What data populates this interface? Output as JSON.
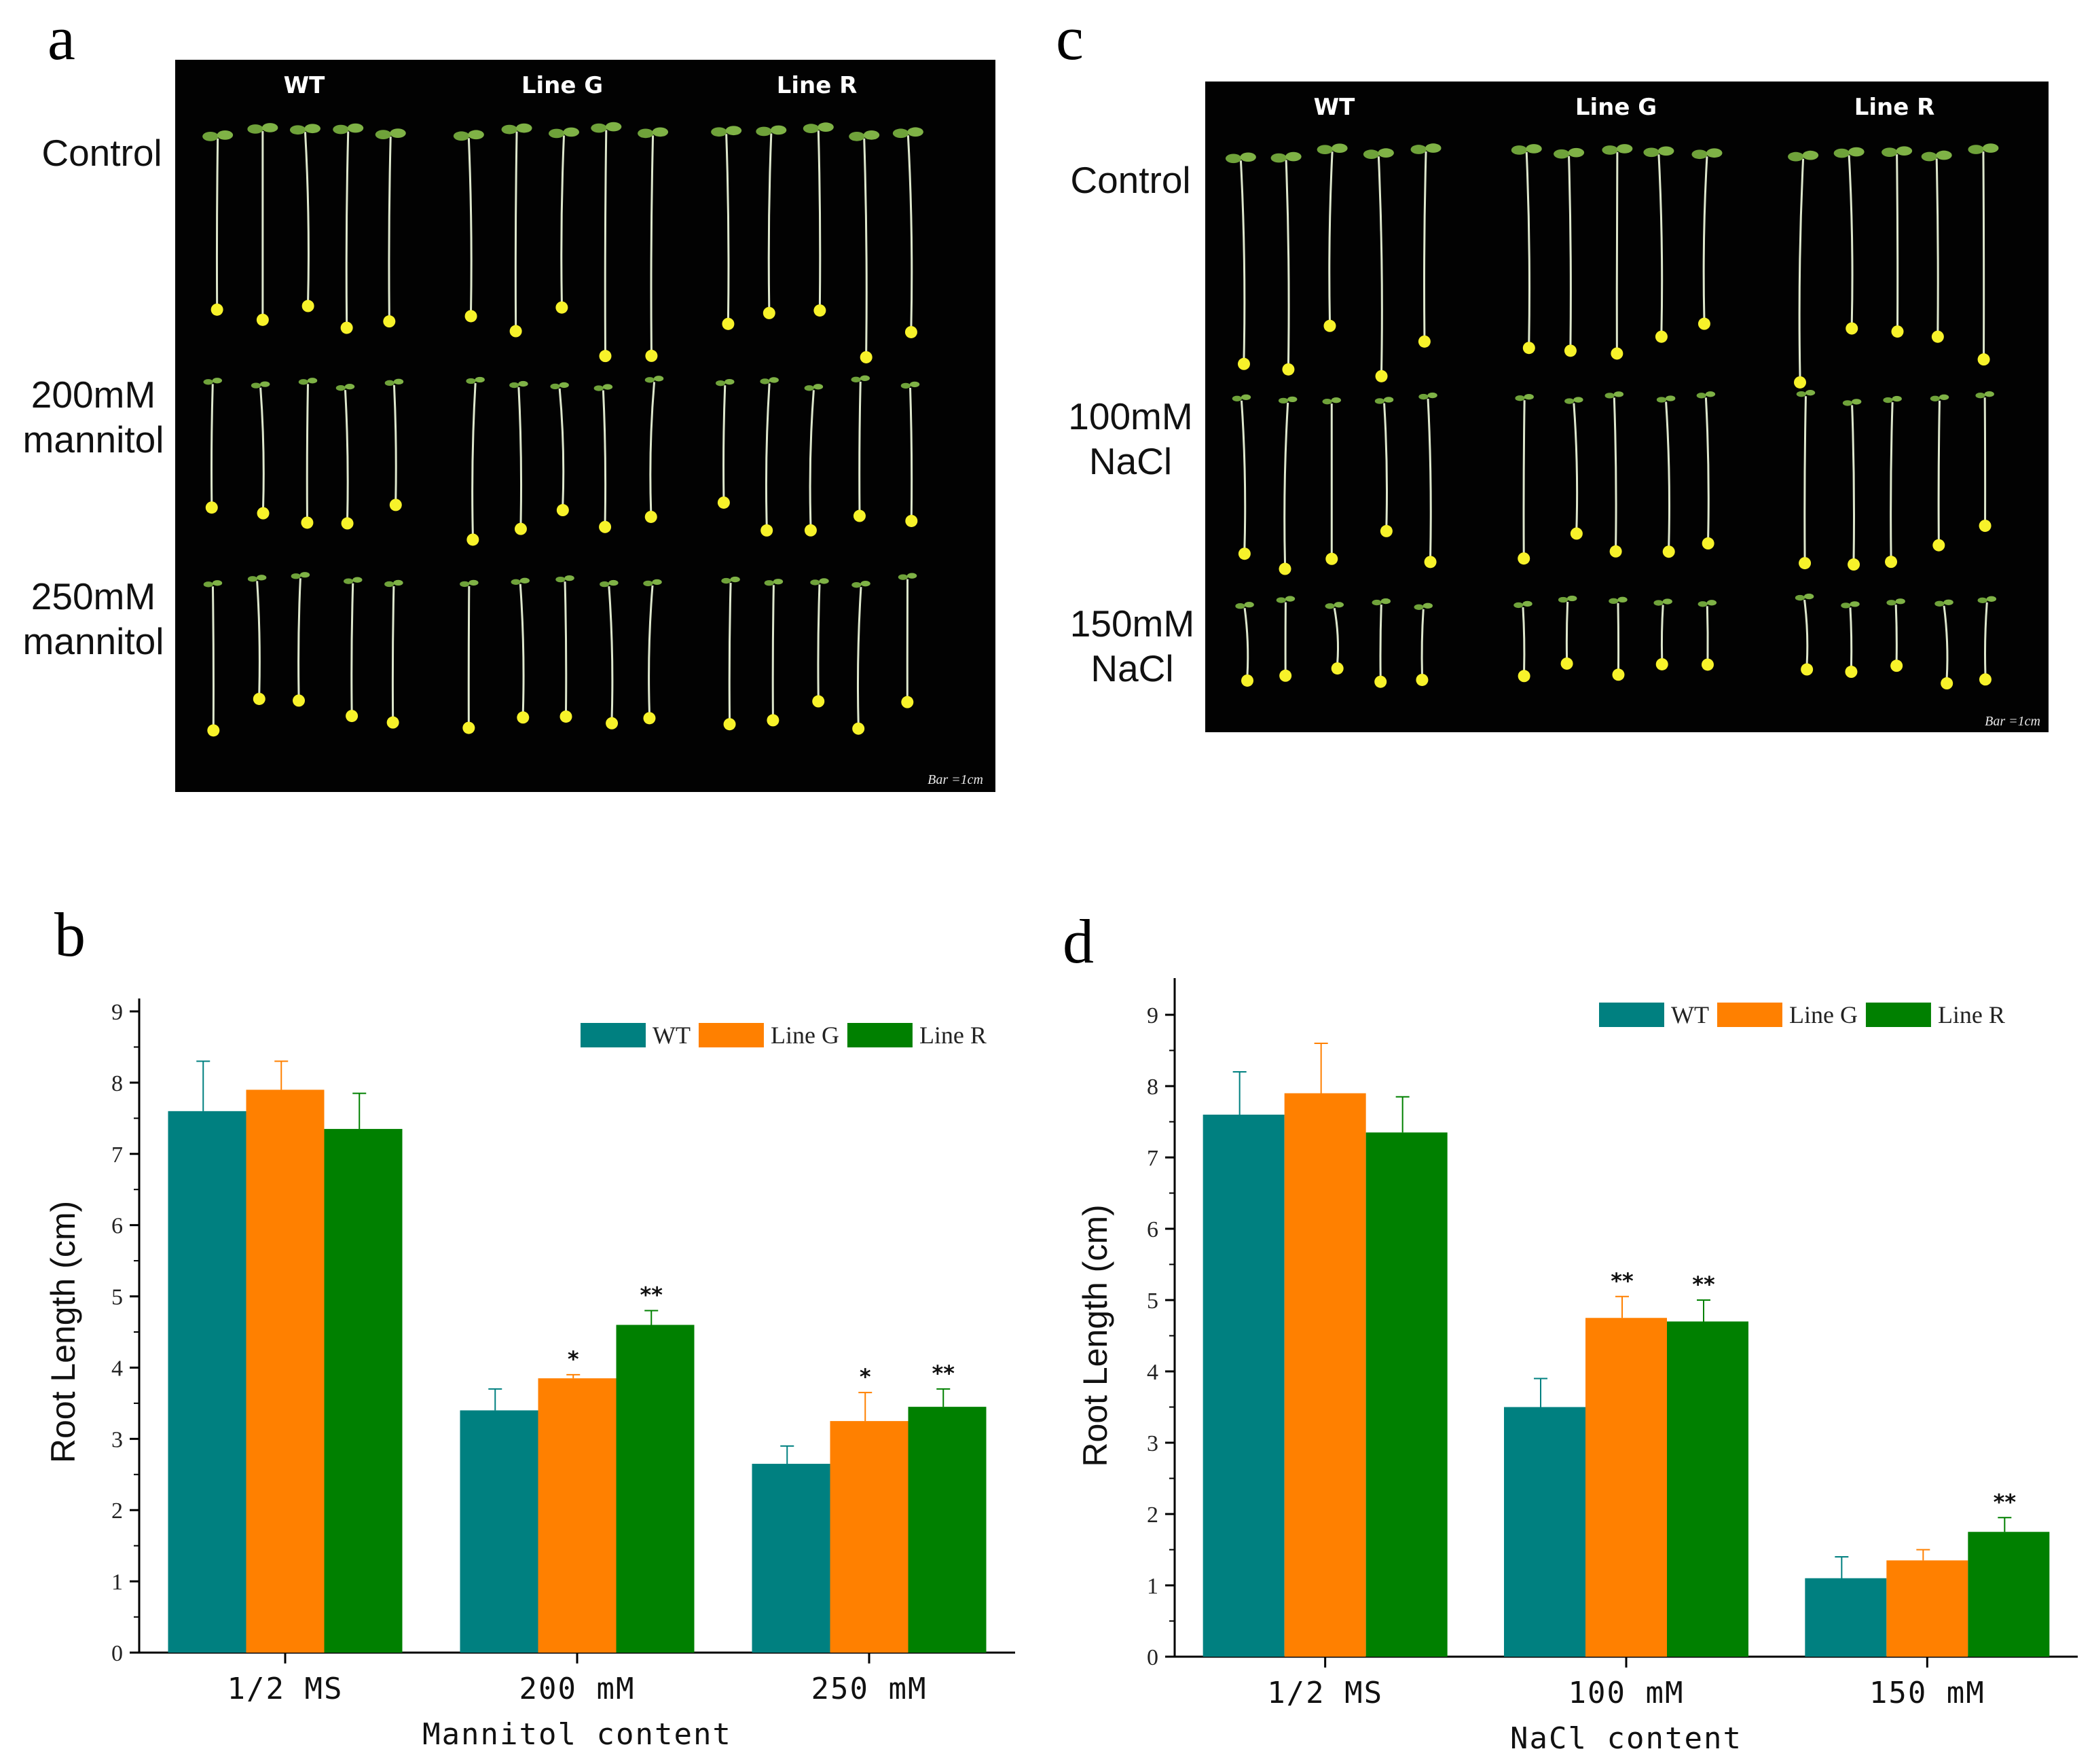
{
  "panels": {
    "a": "a",
    "b": "b",
    "c": "c",
    "d": "d"
  },
  "photo_a": {
    "columns": [
      "WT",
      "Line G",
      "Line R"
    ],
    "rows": [
      {
        "line1": "Control",
        "line2": ""
      },
      {
        "line1": "200mM",
        "line2": "mannitol"
      },
      {
        "line1": "250mM",
        "line2": "mannitol"
      }
    ],
    "scale_bar": "Bar =1cm"
  },
  "photo_c": {
    "columns": [
      "WT",
      "Line G",
      "Line R"
    ],
    "rows": [
      {
        "line1": "Control",
        "line2": ""
      },
      {
        "line1": "100mM",
        "line2": "NaCl"
      },
      {
        "line1": "150mM",
        "line2": "NaCl"
      }
    ],
    "scale_bar": "Bar =1cm"
  },
  "colors": {
    "WT": "#008080",
    "Line G": "#ff8000",
    "Line R": "#008000"
  },
  "chart_data": [
    {
      "type": "bar",
      "panel": "b",
      "categories": [
        "1/2 MS",
        "200 mM",
        "250 mM"
      ],
      "series": [
        {
          "name": "WT",
          "values": [
            7.6,
            3.4,
            2.65
          ],
          "errors": [
            0.7,
            0.3,
            0.25
          ],
          "sig": [
            "",
            "",
            ""
          ]
        },
        {
          "name": "Line G",
          "values": [
            7.9,
            3.85,
            3.25
          ],
          "errors": [
            0.4,
            0.05,
            0.4
          ],
          "sig": [
            "",
            "*",
            "*"
          ]
        },
        {
          "name": "Line R",
          "values": [
            7.35,
            4.6,
            3.45
          ],
          "errors": [
            0.5,
            0.2,
            0.25
          ],
          "sig": [
            "",
            "**",
            "**"
          ]
        }
      ],
      "xlabel": "Mannitol content",
      "ylabel": "Root Length (cm)",
      "ylim": [
        0,
        9
      ],
      "yticks": [
        0,
        1,
        2,
        3,
        4,
        5,
        6,
        7,
        8,
        9
      ],
      "legend": "top-right"
    },
    {
      "type": "bar",
      "panel": "d",
      "categories": [
        "1/2 MS",
        "100 mM",
        "150 mM"
      ],
      "series": [
        {
          "name": "WT",
          "values": [
            7.6,
            3.5,
            1.1
          ],
          "errors": [
            0.6,
            0.4,
            0.3
          ],
          "sig": [
            "",
            "",
            ""
          ]
        },
        {
          "name": "Line G",
          "values": [
            7.9,
            4.75,
            1.35
          ],
          "errors": [
            0.7,
            0.3,
            0.15
          ],
          "sig": [
            "",
            "**",
            ""
          ]
        },
        {
          "name": "Line R",
          "values": [
            7.35,
            4.7,
            1.75
          ],
          "errors": [
            0.5,
            0.3,
            0.2
          ],
          "sig": [
            "",
            "**",
            "**"
          ]
        }
      ],
      "xlabel": "NaCl content",
      "ylabel": "Root Length (cm)",
      "ylim": [
        0,
        9
      ],
      "yticks": [
        0,
        1,
        2,
        3,
        4,
        5,
        6,
        7,
        8,
        9
      ],
      "legend": "top-right"
    }
  ]
}
